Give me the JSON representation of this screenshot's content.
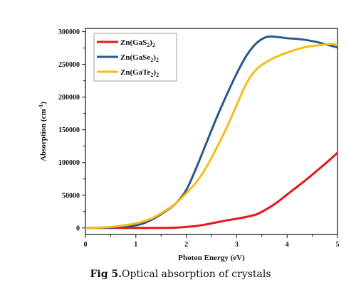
{
  "caption": {
    "label": "Fig 5.",
    "text": "Optical absorption of crystals"
  },
  "chart_data": {
    "type": "line",
    "xlabel": "Photon Energy (eV)",
    "ylabel": "Absorption (cm",
    "ylabel_sup": "-1",
    "ylabel_suffix": ")",
    "xlim": [
      0,
      5
    ],
    "ylim": [
      -10000,
      305000
    ],
    "xticks": [
      0,
      1,
      2,
      3,
      4,
      5
    ],
    "yticks": [
      0,
      50000,
      100000,
      150000,
      200000,
      250000,
      300000
    ],
    "grid": false,
    "legend_position": "top-left",
    "series": [
      {
        "name": "Zn(GaS2)2",
        "legend": {
          "base": "Zn(GaS",
          "sub1": "2",
          "mid": ")",
          "sub2": "2"
        },
        "color": "#e8161b",
        "x": [
          0,
          0.5,
          1.0,
          1.5,
          1.8,
          2.0,
          2.2,
          2.4,
          2.6,
          2.8,
          3.0,
          3.2,
          3.4,
          3.6,
          3.8,
          4.0,
          4.2,
          4.4,
          4.6,
          4.8,
          5.0
        ],
        "y": [
          0,
          0,
          0,
          0,
          500,
          1500,
          3000,
          5500,
          8500,
          11500,
          14000,
          17000,
          21000,
          29000,
          39000,
          51000,
          63000,
          75000,
          88000,
          101000,
          115000
        ]
      },
      {
        "name": "Zn(GaSe2)2",
        "legend": {
          "base": "Zn(GaSe",
          "sub1": "2",
          "mid": ")",
          "sub2": "2"
        },
        "color": "#2a5a8c",
        "x": [
          0,
          0.5,
          1.0,
          1.3,
          1.6,
          1.8,
          2.0,
          2.2,
          2.4,
          2.6,
          2.8,
          3.0,
          3.2,
          3.4,
          3.6,
          3.8,
          4.0,
          4.2,
          4.4,
          4.6,
          4.8,
          5.0
        ],
        "y": [
          0,
          500,
          4000,
          12000,
          26000,
          38000,
          58000,
          92000,
          130000,
          168000,
          203000,
          236000,
          264000,
          283000,
          292000,
          292000,
          290000,
          289000,
          287000,
          284000,
          280000,
          276000
        ]
      },
      {
        "name": "Zn(GaTe2)2",
        "legend": {
          "base": "Zn(GaTe",
          "sub1": "2",
          "mid": ")",
          "sub2": "2"
        },
        "color": "#f6bc1a",
        "x": [
          0,
          0.5,
          1.0,
          1.3,
          1.6,
          1.8,
          2.0,
          2.2,
          2.4,
          2.6,
          2.8,
          3.0,
          3.2,
          3.4,
          3.6,
          3.8,
          4.0,
          4.2,
          4.4,
          4.6,
          4.8,
          5.0
        ],
        "y": [
          0,
          1500,
          7000,
          14000,
          27000,
          38000,
          53000,
          70000,
          93000,
          122000,
          153000,
          188000,
          222000,
          243000,
          254000,
          262000,
          268000,
          273000,
          277000,
          279000,
          281000,
          281000
        ]
      }
    ]
  }
}
